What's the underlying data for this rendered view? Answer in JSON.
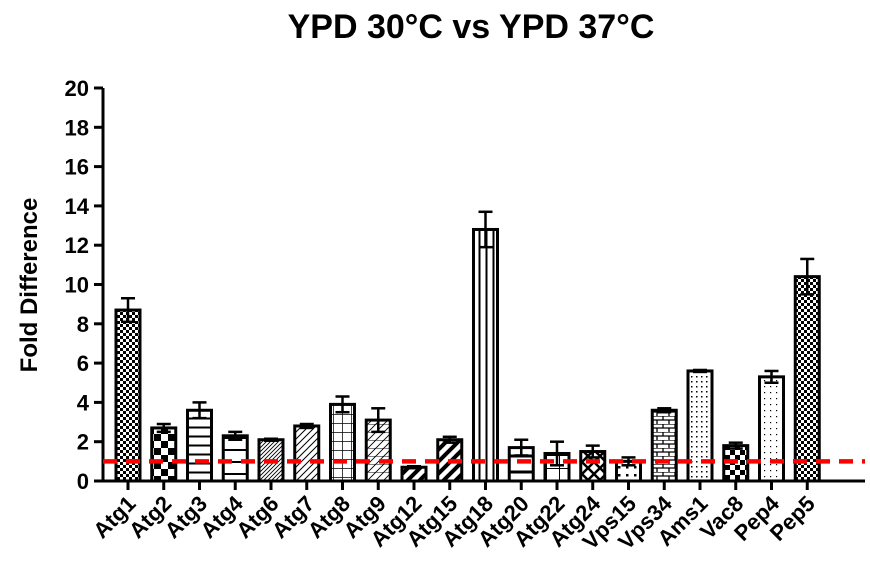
{
  "chart_data": {
    "type": "bar",
    "title": "YPD 30°C vs YPD 37°C",
    "xlabel": "",
    "ylabel": "Fold Difference",
    "ylim": [
      0,
      20
    ],
    "yticks": [
      0,
      2,
      4,
      6,
      8,
      10,
      12,
      14,
      16,
      18,
      20
    ],
    "categories": [
      "Atg1",
      "Atg2",
      "Atg3",
      "Atg4",
      "Atg6",
      "Atg7",
      "Atg8",
      "Atg9",
      "Atg12",
      "Atg15",
      "Atg18",
      "Atg20",
      "Atg22",
      "Atg24",
      "Vps15",
      "Vps34",
      "Ams1",
      "Vac8",
      "Pep4",
      "Pep5"
    ],
    "values": [
      8.7,
      2.7,
      3.6,
      2.3,
      2.1,
      2.8,
      3.9,
      3.1,
      0.7,
      2.1,
      12.8,
      1.7,
      1.4,
      1.5,
      1.0,
      3.6,
      5.6,
      1.8,
      5.3,
      10.4
    ],
    "errors": [
      0.6,
      0.2,
      0.4,
      0.2,
      0.05,
      0.1,
      0.4,
      0.6,
      0.05,
      0.15,
      0.9,
      0.4,
      0.6,
      0.3,
      0.2,
      0.1,
      0.05,
      0.15,
      0.3,
      0.9
    ],
    "patterns": [
      "dense-check",
      "checker",
      "horizontal",
      "horizontal-sparse",
      "diagonal-dense",
      "diagonal",
      "grid",
      "diagonal-grid",
      "diagonal-bold",
      "diagonal-bold",
      "vertical",
      "horizontal-wide",
      "grid-wide",
      "diamond",
      "dots-sparse",
      "brick",
      "dots",
      "checker-small",
      "dots-fine",
      "dense-check"
    ],
    "reference_line": {
      "y": 1,
      "color": "#ff0000",
      "style": "dashed"
    },
    "bar_color": "#000000",
    "grid": false
  }
}
